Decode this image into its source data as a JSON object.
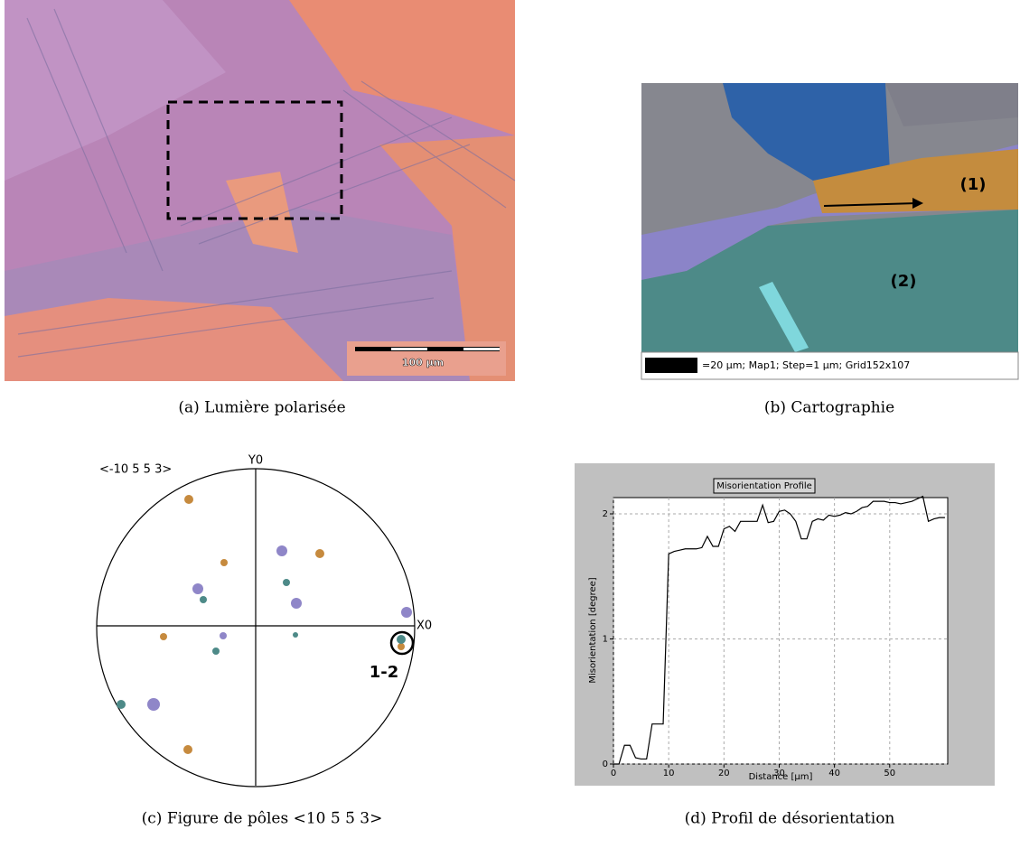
{
  "panels": {
    "a": {
      "scale_label": "100 µm",
      "caption": "(a) Lumière polarisée"
    },
    "b": {
      "grain_labels": [
        "(1)",
        "(2)"
      ],
      "legend": "=20 µm; Map1; Step=1 µm; Grid152x107",
      "caption": "(b) Cartographie"
    },
    "c": {
      "direction": "<-10 5 5 3>",
      "y_axis": "Y0",
      "x_axis": "X0",
      "pair": "1-2",
      "caption": "(c) Figure de pôles <10 5̄ 5̄ 3>"
    },
    "d": {
      "caption": "(d) Profil de désorientation"
    }
  },
  "chart_data": {
    "type": "line",
    "title": "Misorientation Profile",
    "x_label": "Distance [µm]",
    "y_label": "Misorientation [degree]",
    "x": [
      0,
      1,
      2,
      3,
      4,
      5,
      6,
      7,
      8,
      9,
      10,
      11,
      12,
      13,
      14,
      15,
      16,
      17,
      18,
      19,
      20,
      21,
      22,
      23,
      24,
      25,
      26,
      27,
      28,
      29,
      30,
      31,
      32,
      33,
      34,
      35,
      36,
      37,
      38,
      39,
      40,
      41,
      42,
      43,
      44,
      45,
      46,
      47,
      48,
      49,
      50,
      51,
      52,
      53,
      54,
      55,
      56,
      57,
      58,
      59,
      60
    ],
    "series": [
      {
        "color": "#000000",
        "values": [
          0,
          0,
          0.15,
          0.15,
          0.05,
          0.04,
          0.04,
          0.32,
          0.32,
          0.32,
          1.68,
          1.7,
          1.71,
          1.72,
          1.72,
          1.72,
          1.73,
          1.82,
          1.74,
          1.74,
          1.88,
          1.9,
          1.86,
          1.94,
          1.94,
          1.94,
          1.94,
          2.07,
          1.93,
          1.94,
          2.02,
          2.03,
          2.0,
          1.94,
          1.8,
          1.8,
          1.94,
          1.96,
          1.95,
          1.99,
          1.98,
          1.99,
          2.01,
          2.0,
          2.02,
          2.05,
          2.06,
          2.1,
          2.1,
          2.1,
          2.09,
          2.09,
          2.08,
          2.09,
          2.1,
          2.12,
          2.14,
          1.94,
          1.96,
          1.97,
          1.97
        ]
      }
    ],
    "xlim": [
      0,
      60.5
    ],
    "ylim": [
      0,
      2.13
    ],
    "xticks": [
      0,
      10,
      20,
      30,
      40,
      50
    ],
    "yticks": [
      0,
      1,
      2
    ],
    "grid": true
  }
}
